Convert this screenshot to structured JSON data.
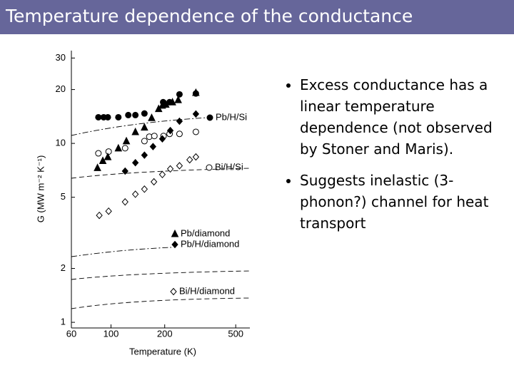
{
  "slide": {
    "title": "Temperature dependence of the conductance",
    "bullets": [
      "Excess conductance has a linear temperature dependence (not observed by Stoner and Maris).",
      "Suggests inelastic (3-phonon?) channel for heat transport"
    ]
  },
  "chart_data": {
    "type": "scatter",
    "x_label": "Temperature (K)",
    "y_label": "G (MW m⁻² K⁻¹)",
    "xscale": "log",
    "yscale": "log",
    "xlim": [
      60,
      600
    ],
    "ylim": [
      0.93,
      33
    ],
    "xticks": [
      60,
      100,
      200,
      500
    ],
    "yticks": [
      1,
      2,
      5,
      10,
      20,
      30
    ],
    "series": [
      {
        "name": "Pb/H/Si",
        "color": "#000000",
        "marker": "circle",
        "filled": true,
        "x": [
          85,
          91,
          96,
          110,
          125,
          137,
          154,
          196,
          213,
          242,
          299
        ],
        "values": [
          14,
          14,
          14,
          14,
          14.4,
          14.4,
          14.7,
          17,
          17,
          18.8,
          19
        ]
      },
      {
        "name": "Bi/H/Si",
        "color": "#000000",
        "marker": "circle",
        "filled": false,
        "x": [
          85,
          97,
          120,
          154,
          164,
          175,
          197,
          213,
          242,
          299
        ],
        "values": [
          8.8,
          9,
          9.4,
          10.3,
          10.9,
          11,
          11,
          11.3,
          11.3,
          11.6
        ]
      },
      {
        "name": "Pb/diamond",
        "color": "#000000",
        "marker": "triangle",
        "filled": true,
        "x": [
          84,
          90,
          96,
          110,
          122,
          137,
          154,
          169,
          185,
          194,
          203,
          221,
          238,
          299
        ],
        "values": [
          7.3,
          8,
          8.4,
          9.4,
          10.3,
          11.6,
          12.3,
          13.9,
          15.6,
          16.3,
          16.5,
          17,
          17.5,
          19.2
        ]
      },
      {
        "name": "Pb/H/diamond",
        "color": "#000000",
        "marker": "diamond",
        "filled": true,
        "x": [
          120,
          137,
          154,
          172,
          194,
          215,
          242,
          299
        ],
        "values": [
          7,
          7.8,
          8.6,
          9.6,
          10.6,
          11.8,
          13.3,
          14.6
        ]
      },
      {
        "name": "Bi/H/diamond",
        "color": "#000000",
        "marker": "diamond",
        "filled": false,
        "x": [
          86,
          97,
          120,
          137,
          154,
          174,
          194,
          215,
          242,
          276,
          299
        ],
        "values": [
          3.96,
          4.18,
          4.71,
          5.2,
          5.55,
          6.1,
          6.7,
          7.2,
          7.5,
          8.1,
          8.4
        ]
      }
    ]
  }
}
